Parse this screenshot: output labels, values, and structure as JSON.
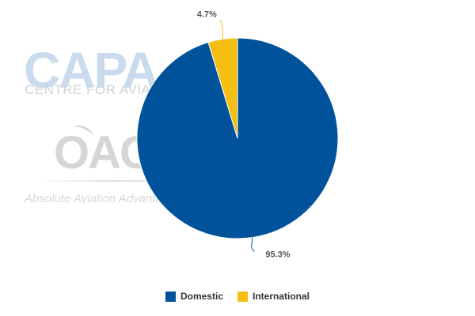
{
  "watermark": {
    "capa_logo": "CAPA",
    "capa_sub": "CENTRE FOR AVIATION",
    "oag_logo": "OAG",
    "oag_tagline": "Absolute Aviation Advantage"
  },
  "chart_data": {
    "type": "pie",
    "slices": [
      {
        "name": "Domestic",
        "value": 95.3,
        "label": "95.3%",
        "color": "#00529b"
      },
      {
        "name": "International",
        "value": 4.7,
        "label": "4.7%",
        "color": "#f5be12"
      }
    ],
    "legend_position": "bottom"
  },
  "legend": {
    "items": [
      {
        "label": "Domestic",
        "color": "#00529b"
      },
      {
        "label": "International",
        "color": "#f5be12"
      }
    ]
  }
}
